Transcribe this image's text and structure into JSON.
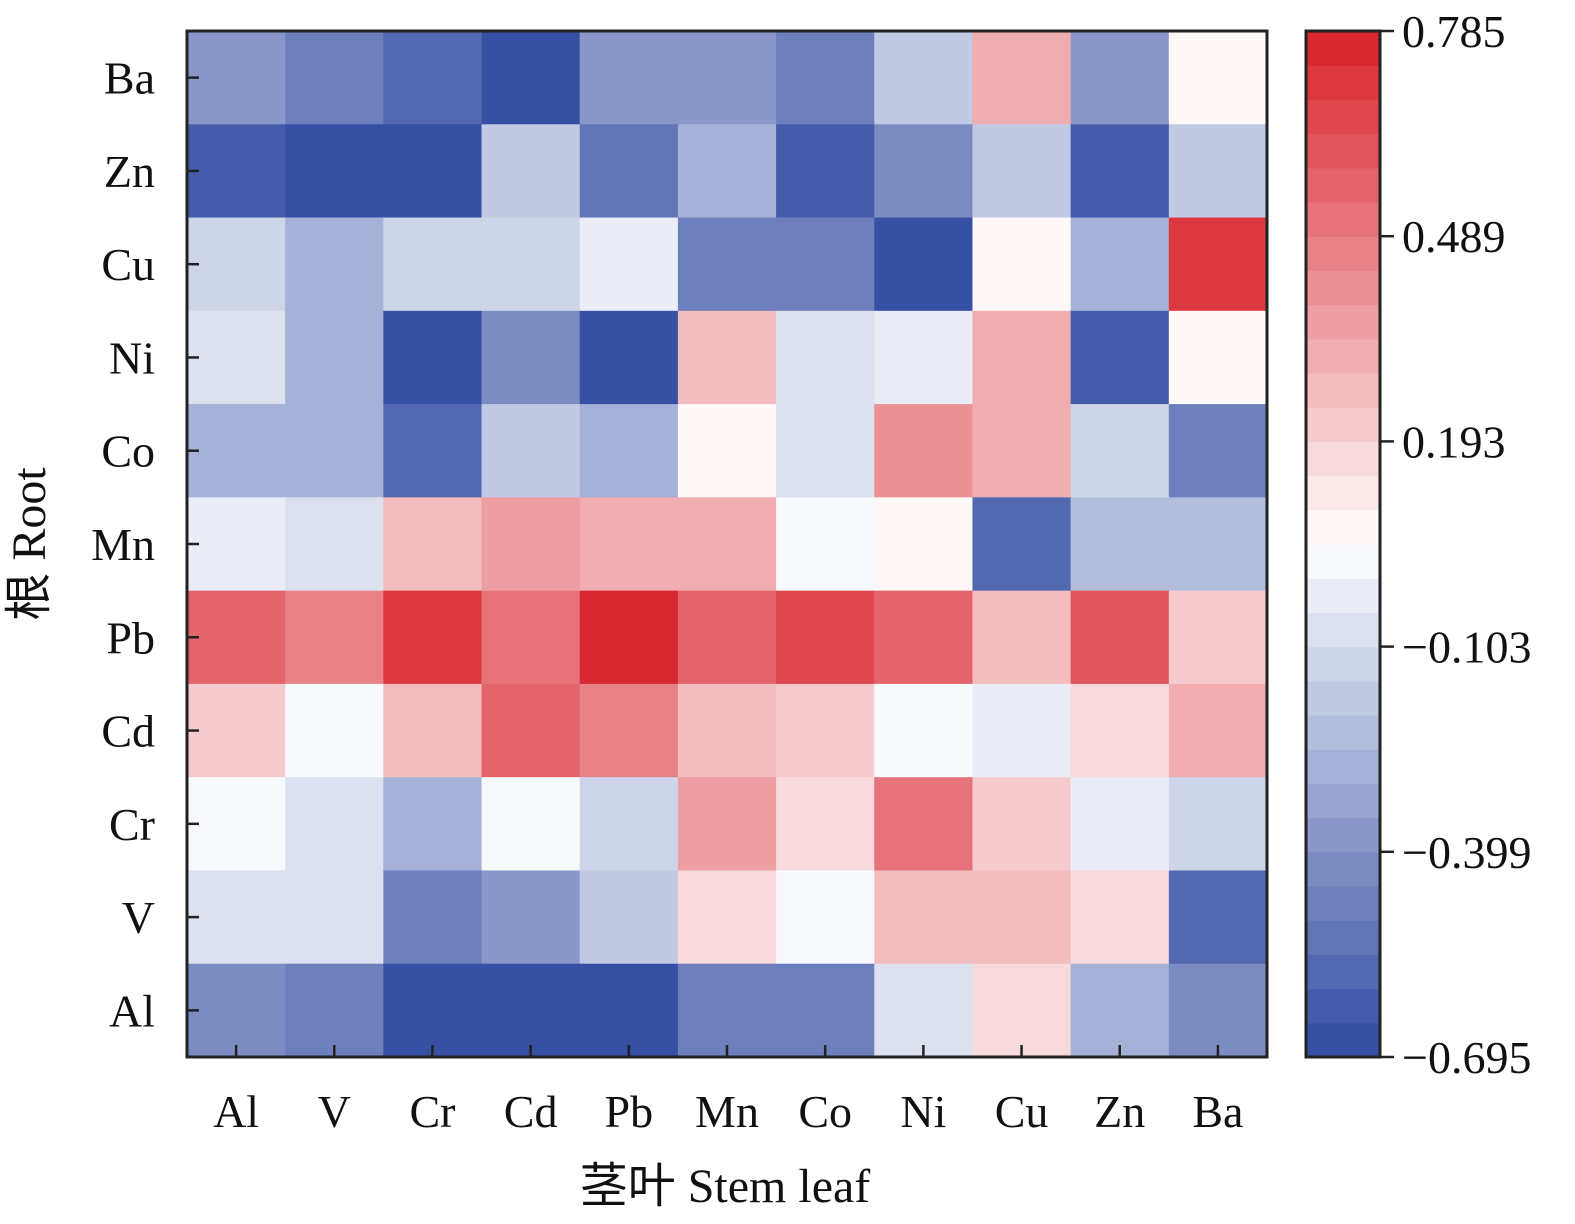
{
  "chart_data": {
    "type": "heatmap",
    "xlabel": "茎叶 Stem leaf",
    "ylabel": "根 Root",
    "x_categories": [
      "Al",
      "V",
      "Cr",
      "Cd",
      "Pb",
      "Mn",
      "Co",
      "Ni",
      "Cu",
      "Zn",
      "Ba"
    ],
    "y_categories": [
      "Ba",
      "Zn",
      "Cu",
      "Ni",
      "Co",
      "Mn",
      "Pb",
      "Cd",
      "Cr",
      "V",
      "Al"
    ],
    "values": [
      [
        -0.35,
        -0.45,
        -0.55,
        -0.65,
        -0.35,
        -0.35,
        -0.45,
        -0.2,
        0.3,
        -0.38,
        0.06
      ],
      [
        -0.6,
        -0.65,
        -0.65,
        -0.2,
        -0.5,
        -0.3,
        -0.6,
        -0.4,
        -0.2,
        -0.6,
        -0.2
      ],
      [
        -0.15,
        -0.3,
        -0.15,
        -0.15,
        -0.05,
        -0.45,
        -0.45,
        -0.65,
        0.06,
        -0.3,
        0.7
      ],
      [
        -0.1,
        -0.3,
        -0.7,
        -0.4,
        -0.65,
        0.25,
        -0.1,
        -0.05,
        0.3,
        -0.6,
        0.06
      ],
      [
        -0.3,
        -0.3,
        -0.55,
        -0.2,
        -0.3,
        0.06,
        -0.1,
        0.4,
        0.3,
        -0.15,
        -0.45
      ],
      [
        -0.05,
        -0.1,
        0.25,
        0.35,
        0.3,
        0.3,
        0.0,
        0.08,
        -0.55,
        -0.25,
        -0.25
      ],
      [
        0.55,
        0.48,
        0.7,
        0.52,
        0.78,
        0.55,
        0.65,
        0.55,
        0.25,
        0.6,
        0.2
      ],
      [
        0.2,
        0.0,
        0.25,
        0.55,
        0.48,
        0.25,
        0.2,
        0.0,
        -0.05,
        0.15,
        0.3
      ],
      [
        0.0,
        -0.1,
        -0.3,
        0.0,
        -0.15,
        0.35,
        0.15,
        0.52,
        0.2,
        -0.05,
        -0.15
      ],
      [
        -0.1,
        -0.1,
        -0.45,
        -0.38,
        -0.2,
        0.15,
        0.0,
        0.25,
        0.25,
        0.15,
        -0.55
      ],
      [
        -0.4,
        -0.45,
        -0.7,
        -0.65,
        -0.68,
        -0.45,
        -0.45,
        -0.1,
        0.15,
        -0.3,
        -0.4
      ]
    ],
    "colorbar": {
      "min": -0.695,
      "max": 0.785,
      "ticks": [
        "0.785",
        "0.489",
        "0.193",
        "−0.103",
        "−0.399",
        "−0.695"
      ],
      "tick_values": [
        0.785,
        0.489,
        0.193,
        -0.103,
        -0.399,
        -0.695
      ],
      "steps": 30,
      "low_color": "#2f4aa0",
      "mid_color": "#ffffff",
      "high_color": "#d7222b"
    }
  }
}
